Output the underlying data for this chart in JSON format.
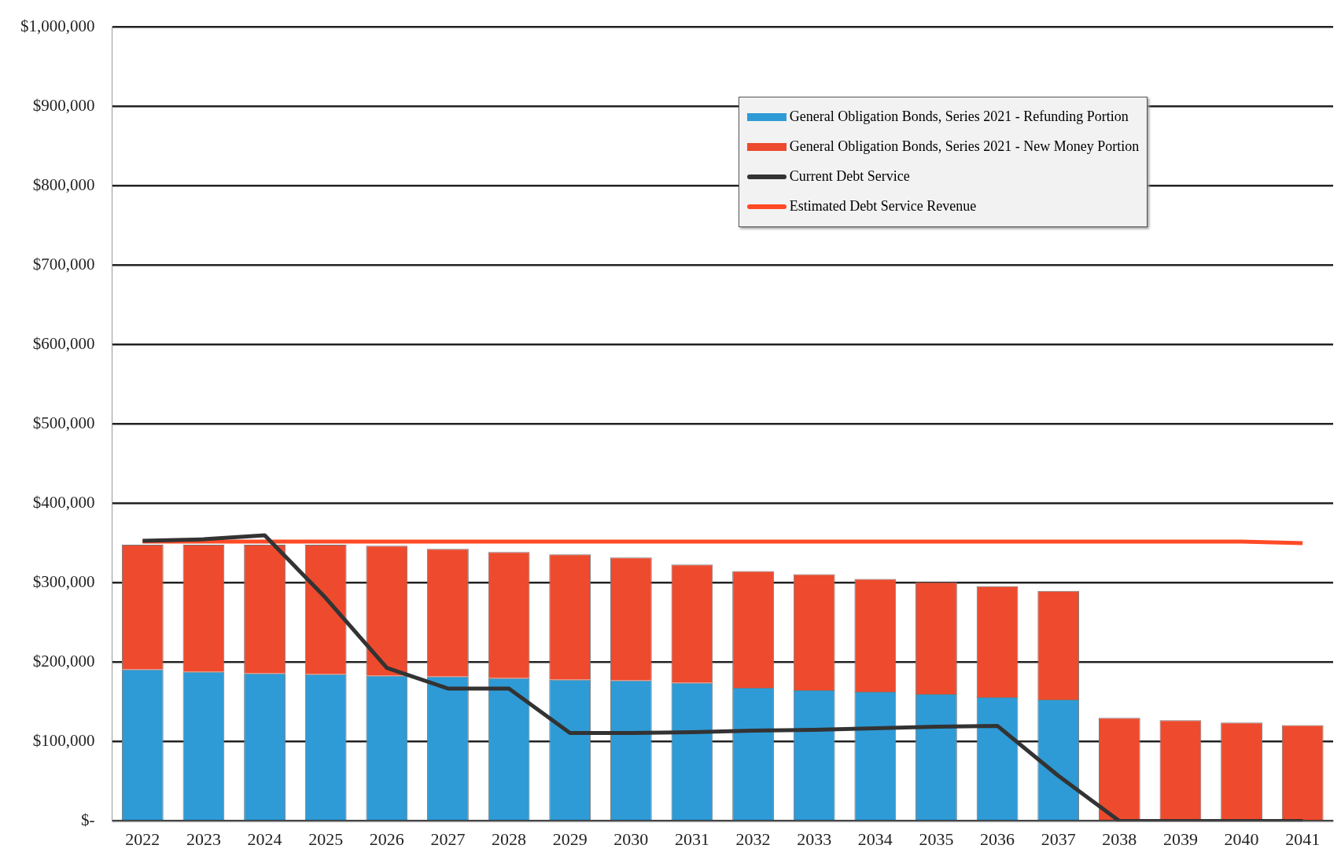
{
  "chart_data": {
    "type": "bar",
    "stacked": true,
    "categories": [
      "2022",
      "2023",
      "2024",
      "2025",
      "2026",
      "2027",
      "2028",
      "2029",
      "2030",
      "2031",
      "2032",
      "2033",
      "2034",
      "2035",
      "2036",
      "2037",
      "2038",
      "2039",
      "2040",
      "2041"
    ],
    "series": [
      {
        "name": "General Obligation Bonds, Series 2021 - Refunding Portion",
        "color": "#2e9bd6",
        "values": [
          191000,
          188000,
          186000,
          185000,
          183000,
          182000,
          180000,
          178000,
          177000,
          174000,
          168000,
          165000,
          163000,
          160000,
          156000,
          153000,
          0,
          0,
          0,
          0
        ]
      },
      {
        "name": "General Obligation Bonds, Series 2021 - New Money Portion",
        "color": "#ee4a2e",
        "values": [
          157000,
          160000,
          162000,
          163000,
          164000,
          161000,
          159000,
          158000,
          155000,
          149000,
          147000,
          146000,
          142000,
          141000,
          140000,
          137000,
          130000,
          127000,
          124000,
          121000
        ]
      },
      {
        "name": "Current Debt Service",
        "type": "line",
        "color": "#333333",
        "values": [
          353000,
          355000,
          360000,
          281000,
          193000,
          167000,
          167000,
          111000,
          111000,
          112000,
          114000,
          115000,
          117000,
          119000,
          120000,
          57000,
          0,
          0,
          0,
          0
        ]
      },
      {
        "name": "Estimated Debt Service Revenue",
        "type": "line",
        "color": "#ff4a26",
        "values": [
          352000,
          352000,
          352000,
          352000,
          352000,
          352000,
          352000,
          352000,
          352000,
          352000,
          352000,
          352000,
          352000,
          352000,
          352000,
          352000,
          352000,
          352000,
          352000,
          350000
        ]
      }
    ],
    "ylim": [
      0,
      1000000
    ],
    "yticks": [
      {
        "value": 0,
        "label": "$-"
      },
      {
        "value": 100000,
        "label": "$100,000"
      },
      {
        "value": 200000,
        "label": "$200,000"
      },
      {
        "value": 300000,
        "label": "$300,000"
      },
      {
        "value": 400000,
        "label": "$400,000"
      },
      {
        "value": 500000,
        "label": "$500,000"
      },
      {
        "value": 600000,
        "label": "$600,000"
      },
      {
        "value": 700000,
        "label": "$700,000"
      },
      {
        "value": 800000,
        "label": "$800,000"
      },
      {
        "value": 900000,
        "label": "$900,000"
      },
      {
        "value": 1000000,
        "label": "$1,000,000"
      }
    ],
    "grid": "y",
    "legend": "top right",
    "marker": "none"
  }
}
